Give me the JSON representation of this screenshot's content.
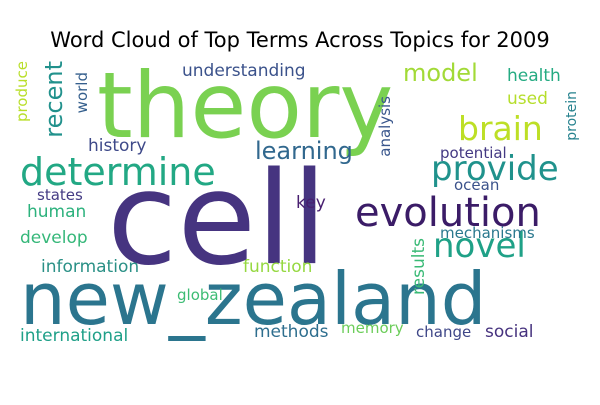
{
  "chart_data": {
    "type": "wordcloud",
    "title": "Word Cloud of Top Terms Across Topics  for 2009",
    "words": [
      {
        "text": "theory",
        "color": "#7ad151",
        "rotated": false
      },
      {
        "text": "cell",
        "color": "#463480",
        "rotated": false
      },
      {
        "text": "new_zealand",
        "color": "#2b758e",
        "rotated": false
      },
      {
        "text": "determine",
        "color": "#22a884",
        "rotated": false
      },
      {
        "text": "evolution",
        "color": "#3b1c67",
        "rotated": false
      },
      {
        "text": "provide",
        "color": "#20928c",
        "rotated": false
      },
      {
        "text": "novel",
        "color": "#1fa187",
        "rotated": false
      },
      {
        "text": "brain",
        "color": "#bddf26",
        "rotated": false
      },
      {
        "text": "learning",
        "color": "#31688e",
        "rotated": false
      },
      {
        "text": "recent",
        "color": "#21918c",
        "rotated": true
      },
      {
        "text": "model",
        "color": "#a2da37",
        "rotated": false
      },
      {
        "text": "understanding",
        "color": "#3b528b",
        "rotated": false
      },
      {
        "text": "health",
        "color": "#25ab82",
        "rotated": false
      },
      {
        "text": "used",
        "color": "#b5de2b",
        "rotated": false
      },
      {
        "text": "protein",
        "color": "#26828e",
        "rotated": true
      },
      {
        "text": "produce",
        "color": "#b8de29",
        "rotated": true
      },
      {
        "text": "world",
        "color": "#355f8d",
        "rotated": true
      },
      {
        "text": "history",
        "color": "#3e4989",
        "rotated": false
      },
      {
        "text": "analysis",
        "color": "#39568c",
        "rotated": true
      },
      {
        "text": "potential",
        "color": "#443983",
        "rotated": false
      },
      {
        "text": "ocean",
        "color": "#3b528b",
        "rotated": false
      },
      {
        "text": "states",
        "color": "#443b84",
        "rotated": false
      },
      {
        "text": "human",
        "color": "#2db27d",
        "rotated": false
      },
      {
        "text": "key",
        "color": "#481f70",
        "rotated": false
      },
      {
        "text": "develop",
        "color": "#35b779",
        "rotated": false
      },
      {
        "text": "mechanisms",
        "color": "#2a788e",
        "rotated": false
      },
      {
        "text": "results",
        "color": "#3aba76",
        "rotated": true
      },
      {
        "text": "information",
        "color": "#2a9086",
        "rotated": false
      },
      {
        "text": "function",
        "color": "#95d840",
        "rotated": false
      },
      {
        "text": "global",
        "color": "#3dbc74",
        "rotated": false
      },
      {
        "text": "international",
        "color": "#1fa088",
        "rotated": false
      },
      {
        "text": "methods",
        "color": "#2e6e8e",
        "rotated": false
      },
      {
        "text": "memory",
        "color": "#6ccd5a",
        "rotated": false
      },
      {
        "text": "change",
        "color": "#3f4788",
        "rotated": false
      },
      {
        "text": "social",
        "color": "#46327e",
        "rotated": false
      }
    ]
  }
}
